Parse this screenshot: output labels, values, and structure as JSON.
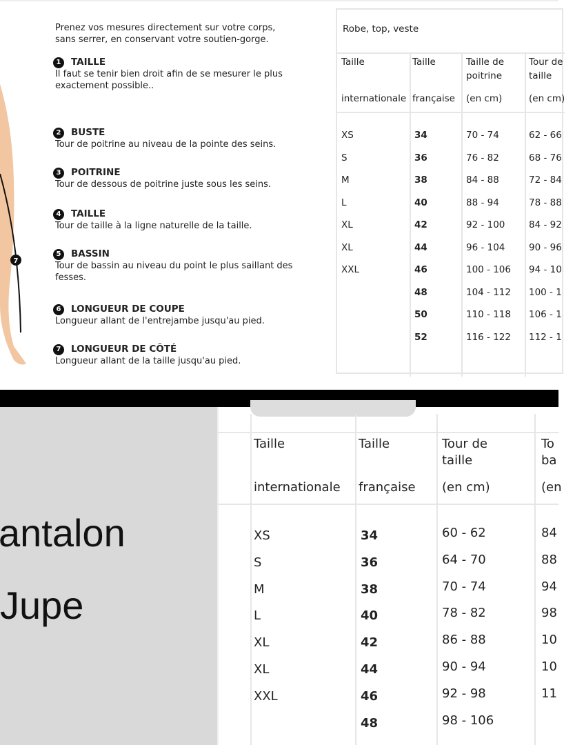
{
  "instructions": {
    "intro": [
      "Prenez vos mesures directement sur votre corps,",
      "sans serrer, en conservant votre soutien-gorge."
    ],
    "items": [
      {
        "num": "1",
        "title": "TAILLE",
        "text": "Il faut se tenir bien droit afin de se mesurer le plus exactement possible.."
      },
      {
        "num": "2",
        "title": "BUSTE",
        "text": "Tour de poitrine au niveau de la pointe des seins."
      },
      {
        "num": "3",
        "title": "POITRINE",
        "text": "Tour de dessous de poitrine juste sous les seins."
      },
      {
        "num": "4",
        "title": "TAILLE",
        "text": "Tour de taille à la ligne naturelle de la taille."
      },
      {
        "num": "5",
        "title": "BASSIN",
        "text": "Tour de bassin au niveau du point le plus saillant des fesses."
      },
      {
        "num": "6",
        "title": "LONGUEUR DE COUPE",
        "text": "Longueur allant de l'entrejambe jusqu'au pied."
      },
      {
        "num": "7",
        "title": "LONGUEUR DE CÔTÉ",
        "text": "Longueur allant de la taille jusqu'au pied."
      }
    ],
    "figure_marker": "7"
  },
  "top_table": {
    "title": "Robe, top, veste",
    "headers": [
      [
        "Taille",
        "internationale"
      ],
      [
        "Taille",
        "française"
      ],
      [
        "Taille de poitrine",
        "(en cm)"
      ],
      [
        "Tour de taille",
        "(en cm)"
      ]
    ],
    "rows": [
      [
        "XS",
        "34",
        "70 - 74",
        "62 - 66"
      ],
      [
        "S",
        "36",
        "76 - 82",
        "68 - 76"
      ],
      [
        "M",
        "38",
        "84 - 88",
        "72 - 84"
      ],
      [
        "L",
        "40",
        "88 - 94",
        "78 - 88"
      ],
      [
        "XL",
        "42",
        "92 - 100",
        "84 - 92"
      ],
      [
        "XL",
        "44",
        "96 - 104",
        "90 - 96"
      ],
      [
        "XXL",
        "46",
        "100 - 106",
        "94 - 10"
      ],
      [
        "",
        "48",
        "104 - 112",
        "100 - 1"
      ],
      [
        "",
        "50",
        "110 - 118",
        "106 - 1"
      ],
      [
        "",
        "52",
        "116 - 122",
        "112 - 1"
      ]
    ]
  },
  "bottom_labels": {
    "line1": "antalon",
    "line2": "Jupe"
  },
  "bottom_table": {
    "headers": [
      [
        "Taille",
        "internationale"
      ],
      [
        "Taille",
        "française"
      ],
      [
        "Tour de taille",
        "(en cm)"
      ],
      [
        "To ba",
        "(en"
      ]
    ],
    "rows": [
      [
        "XS",
        "34",
        "60 - 62",
        "84"
      ],
      [
        "S",
        "36",
        "64 - 70",
        "88"
      ],
      [
        "M",
        "38",
        "70 - 74",
        "94"
      ],
      [
        "L",
        "40",
        "78 - 82",
        "98"
      ],
      [
        "XL",
        "42",
        "86 - 88",
        "10"
      ],
      [
        "XL",
        "44",
        "90 - 94",
        "10"
      ],
      [
        "XXL",
        "46",
        "92 - 98",
        "11"
      ],
      [
        "",
        "48",
        "98 - 106",
        ""
      ]
    ]
  },
  "colors": {
    "skin": "#f1c6a0",
    "band": "#000000",
    "panel": "#d9d9d9"
  }
}
